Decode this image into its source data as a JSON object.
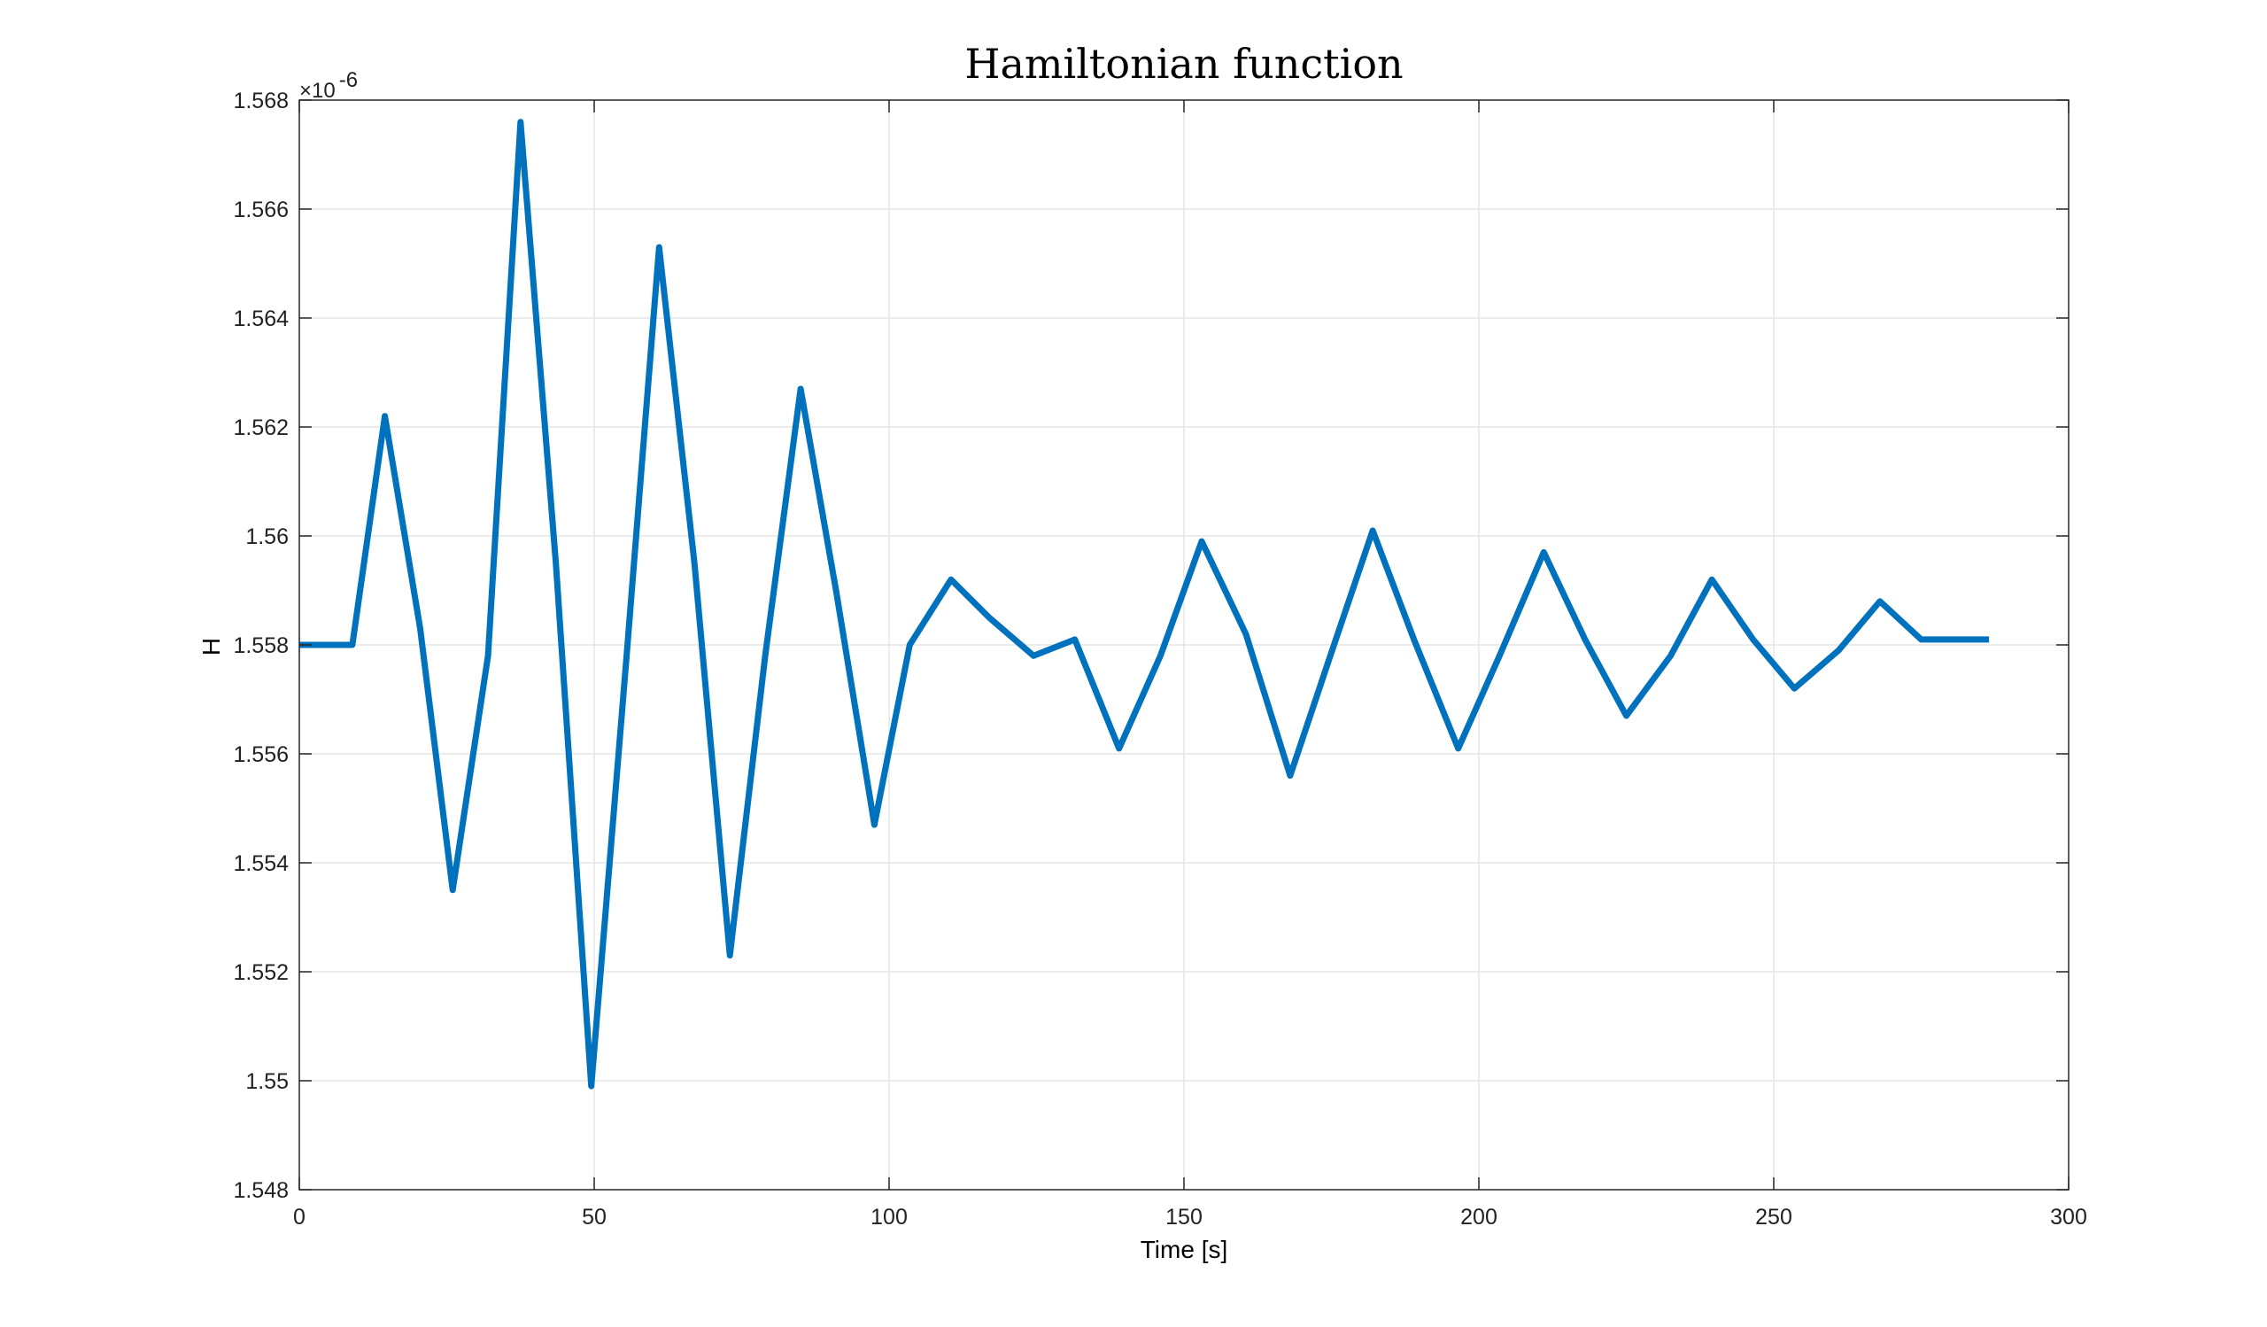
{
  "chart_data": {
    "type": "line",
    "title": "Hamiltonian function",
    "xlabel": "Time [s]",
    "ylabel": "H",
    "y_exponent_label": "×10",
    "y_exponent_power": "-6",
    "xlim": [
      0,
      300
    ],
    "ylim": [
      1.548,
      1.568
    ],
    "x_ticks": [
      0,
      50,
      100,
      150,
      200,
      250,
      300
    ],
    "x_tick_labels": [
      "0",
      "50",
      "100",
      "150",
      "200",
      "250",
      "300"
    ],
    "y_ticks": [
      1.548,
      1.55,
      1.552,
      1.554,
      1.556,
      1.558,
      1.56,
      1.562,
      1.564,
      1.566,
      1.568
    ],
    "y_tick_labels": [
      "1.548",
      "1.55",
      "1.552",
      "1.554",
      "1.556",
      "1.558",
      "1.56",
      "1.562",
      "1.564",
      "1.566",
      "1.568"
    ],
    "grid": true,
    "color": "#0072BD",
    "series": [
      {
        "x": [
          0,
          9,
          14.5,
          20.5,
          26,
          32,
          37.5,
          43.5,
          49.5,
          55.5,
          61,
          67,
          73,
          79,
          85,
          91,
          97.5,
          103.5,
          110.5,
          117,
          124.5,
          131.5,
          139,
          146,
          153,
          160.5,
          168,
          174.5,
          182,
          189,
          196.5,
          203.5,
          211,
          218,
          225,
          232.5,
          239.5,
          246.5,
          253.5,
          261,
          268,
          275,
          286.5
        ],
        "y": [
          1.558,
          1.558,
          1.5622,
          1.5583,
          1.5535,
          1.5578,
          1.5676,
          1.5595,
          1.5499,
          1.5578,
          1.5653,
          1.5595,
          1.5523,
          1.5578,
          1.5627,
          1.559,
          1.5547,
          1.558,
          1.5592,
          1.5585,
          1.5578,
          1.5581,
          1.5561,
          1.5578,
          1.5599,
          1.5582,
          1.5556,
          1.5577,
          1.5601,
          1.5581,
          1.5561,
          1.5578,
          1.5597,
          1.5581,
          1.5567,
          1.5578,
          1.5592,
          1.5581,
          1.5572,
          1.5579,
          1.5588,
          1.5581,
          1.5581
        ]
      }
    ]
  }
}
